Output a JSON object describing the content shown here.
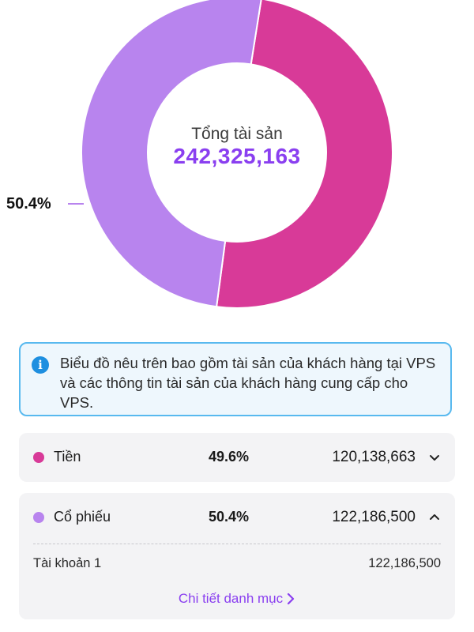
{
  "colors": {
    "cash": "#d83a98",
    "stock": "#b884ee",
    "accent": "#8a3ff0",
    "info_border": "#58b9ef",
    "info_bg": "#eef7fd"
  },
  "summary": {
    "total_label": "Tổng tài sản",
    "total_value": "242,325,163",
    "outside_pct_label": "50.4%"
  },
  "chart_data": {
    "type": "pie",
    "style": "donut",
    "title": "",
    "slices": [
      {
        "label": "Tiền",
        "value": 49.6,
        "amount": 120138663,
        "color": "#d83a98"
      },
      {
        "label": "Cổ phiếu",
        "value": 50.4,
        "amount": 122186500,
        "color": "#b884ee"
      }
    ]
  },
  "info": {
    "icon": "info-icon",
    "text": "Biểu đồ nêu trên bao gồm tài sản của khách hàng tại VPS và các thông tin tài sản của khách hàng cung cấp cho VPS."
  },
  "assets": [
    {
      "name": "Tiền",
      "percent": "49.6%",
      "amount": "120,138,663",
      "color": "#d83a98",
      "expanded": false,
      "chevron": "chevron-down-icon"
    },
    {
      "name": "Cổ phiếu",
      "percent": "50.4%",
      "amount": "122,186,500",
      "color": "#b884ee",
      "expanded": true,
      "chevron": "chevron-up-icon",
      "sub_items": [
        {
          "name": "Tài khoản 1",
          "amount": "122,186,500"
        }
      ],
      "detail_link": "Chi tiết danh mục"
    }
  ]
}
